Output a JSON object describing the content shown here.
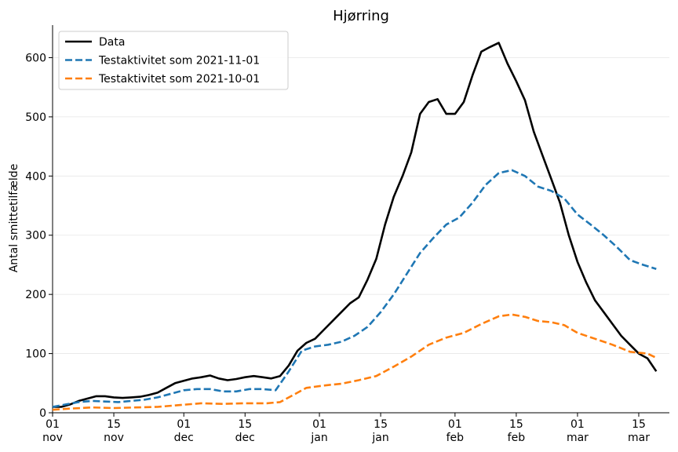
{
  "chart_data": {
    "type": "line",
    "title": "Hjørring",
    "xlabel": "",
    "ylabel": "Antal smittetilfælde",
    "ylim": [
      0,
      655
    ],
    "xlim": [
      "2021-11-01",
      "2022-03-22"
    ],
    "grid": "horizontal",
    "legend_position": "top-left",
    "y_ticks": [
      0,
      100,
      200,
      300,
      400,
      500,
      600
    ],
    "x_ticks": [
      {
        "date": "2021-11-01",
        "day": "01",
        "month": "nov"
      },
      {
        "date": "2021-11-15",
        "day": "15",
        "month": "nov"
      },
      {
        "date": "2021-12-01",
        "day": "01",
        "month": "dec"
      },
      {
        "date": "2021-12-15",
        "day": "15",
        "month": "dec"
      },
      {
        "date": "2022-01-01",
        "day": "01",
        "month": "jan"
      },
      {
        "date": "2022-01-15",
        "day": "15",
        "month": "jan"
      },
      {
        "date": "2022-02-01",
        "day": "01",
        "month": "feb"
      },
      {
        "date": "2022-02-15",
        "day": "15",
        "month": "feb"
      },
      {
        "date": "2022-03-01",
        "day": "01",
        "month": "mar"
      },
      {
        "date": "2022-03-15",
        "day": "15",
        "month": "mar"
      }
    ],
    "series": [
      {
        "name": "Data",
        "color": "#000000",
        "style": "solid",
        "points": [
          [
            "2021-11-01",
            10
          ],
          [
            "2021-11-03",
            10
          ],
          [
            "2021-11-05",
            14
          ],
          [
            "2021-11-07",
            20
          ],
          [
            "2021-11-09",
            24
          ],
          [
            "2021-11-11",
            28
          ],
          [
            "2021-11-13",
            28
          ],
          [
            "2021-11-15",
            26
          ],
          [
            "2021-11-17",
            25
          ],
          [
            "2021-11-19",
            26
          ],
          [
            "2021-11-21",
            27
          ],
          [
            "2021-11-23",
            30
          ],
          [
            "2021-11-25",
            34
          ],
          [
            "2021-11-27",
            42
          ],
          [
            "2021-11-29",
            50
          ],
          [
            "2021-12-01",
            54
          ],
          [
            "2021-12-03",
            58
          ],
          [
            "2021-12-05",
            60
          ],
          [
            "2021-12-07",
            63
          ],
          [
            "2021-12-09",
            58
          ],
          [
            "2021-12-11",
            55
          ],
          [
            "2021-12-13",
            57
          ],
          [
            "2021-12-15",
            60
          ],
          [
            "2021-12-17",
            62
          ],
          [
            "2021-12-19",
            60
          ],
          [
            "2021-12-21",
            58
          ],
          [
            "2021-12-23",
            62
          ],
          [
            "2021-12-25",
            80
          ],
          [
            "2021-12-27",
            105
          ],
          [
            "2021-12-29",
            118
          ],
          [
            "2021-12-31",
            125
          ],
          [
            "2022-01-02",
            140
          ],
          [
            "2022-01-04",
            155
          ],
          [
            "2022-01-06",
            170
          ],
          [
            "2022-01-08",
            185
          ],
          [
            "2022-01-10",
            195
          ],
          [
            "2022-01-12",
            225
          ],
          [
            "2022-01-14",
            260
          ],
          [
            "2022-01-16",
            318
          ],
          [
            "2022-01-18",
            365
          ],
          [
            "2022-01-20",
            400
          ],
          [
            "2022-01-22",
            440
          ],
          [
            "2022-01-24",
            505
          ],
          [
            "2022-01-26",
            525
          ],
          [
            "2022-01-28",
            530
          ],
          [
            "2022-01-30",
            505
          ],
          [
            "2022-02-01",
            505
          ],
          [
            "2022-02-03",
            525
          ],
          [
            "2022-02-05",
            570
          ],
          [
            "2022-02-07",
            610
          ],
          [
            "2022-02-09",
            618
          ],
          [
            "2022-02-11",
            625
          ],
          [
            "2022-02-13",
            590
          ],
          [
            "2022-02-15",
            560
          ],
          [
            "2022-02-17",
            528
          ],
          [
            "2022-02-19",
            475
          ],
          [
            "2022-02-21",
            435
          ],
          [
            "2022-02-23",
            395
          ],
          [
            "2022-02-25",
            355
          ],
          [
            "2022-02-27",
            300
          ],
          [
            "2022-03-01",
            255
          ],
          [
            "2022-03-03",
            220
          ],
          [
            "2022-03-05",
            190
          ],
          [
            "2022-03-07",
            170
          ],
          [
            "2022-03-09",
            150
          ],
          [
            "2022-03-11",
            130
          ],
          [
            "2022-03-13",
            115
          ],
          [
            "2022-03-15",
            100
          ],
          [
            "2022-03-17",
            92
          ],
          [
            "2022-03-19",
            70
          ]
        ]
      },
      {
        "name": "Testaktivitet som 2021-11-01",
        "color": "#1f77b4",
        "style": "dashed",
        "points": [
          [
            "2021-11-01",
            10
          ],
          [
            "2021-11-04",
            14
          ],
          [
            "2021-11-07",
            18
          ],
          [
            "2021-11-10",
            20
          ],
          [
            "2021-11-13",
            19
          ],
          [
            "2021-11-16",
            18
          ],
          [
            "2021-11-19",
            20
          ],
          [
            "2021-11-22",
            22
          ],
          [
            "2021-11-25",
            26
          ],
          [
            "2021-11-28",
            32
          ],
          [
            "2021-12-01",
            38
          ],
          [
            "2021-12-04",
            40
          ],
          [
            "2021-12-07",
            40
          ],
          [
            "2021-12-10",
            36
          ],
          [
            "2021-12-13",
            36
          ],
          [
            "2021-12-16",
            40
          ],
          [
            "2021-12-19",
            40
          ],
          [
            "2021-12-22",
            38
          ],
          [
            "2021-12-25",
            70
          ],
          [
            "2021-12-28",
            105
          ],
          [
            "2021-12-31",
            112
          ],
          [
            "2022-01-03",
            115
          ],
          [
            "2022-01-06",
            120
          ],
          [
            "2022-01-09",
            130
          ],
          [
            "2022-01-12",
            145
          ],
          [
            "2022-01-15",
            170
          ],
          [
            "2022-01-18",
            200
          ],
          [
            "2022-01-21",
            235
          ],
          [
            "2022-01-24",
            270
          ],
          [
            "2022-01-27",
            295
          ],
          [
            "2022-01-30",
            318
          ],
          [
            "2022-02-02",
            330
          ],
          [
            "2022-02-05",
            355
          ],
          [
            "2022-02-08",
            385
          ],
          [
            "2022-02-11",
            405
          ],
          [
            "2022-02-14",
            410
          ],
          [
            "2022-02-17",
            400
          ],
          [
            "2022-02-20",
            382
          ],
          [
            "2022-02-23",
            375
          ],
          [
            "2022-02-26",
            362
          ],
          [
            "2022-03-01",
            335
          ],
          [
            "2022-03-04",
            318
          ],
          [
            "2022-03-07",
            300
          ],
          [
            "2022-03-10",
            280
          ],
          [
            "2022-03-13",
            258
          ],
          [
            "2022-03-16",
            250
          ],
          [
            "2022-03-19",
            243
          ]
        ]
      },
      {
        "name": "Testaktivitet som 2021-10-01",
        "color": "#ff7f0e",
        "style": "dashed",
        "points": [
          [
            "2021-11-01",
            5
          ],
          [
            "2021-11-05",
            7
          ],
          [
            "2021-11-10",
            9
          ],
          [
            "2021-11-15",
            8
          ],
          [
            "2021-11-20",
            9
          ],
          [
            "2021-11-25",
            10
          ],
          [
            "2021-11-30",
            13
          ],
          [
            "2021-12-05",
            16
          ],
          [
            "2021-12-10",
            15
          ],
          [
            "2021-12-15",
            16
          ],
          [
            "2021-12-20",
            16
          ],
          [
            "2021-12-23",
            18
          ],
          [
            "2021-12-26",
            30
          ],
          [
            "2021-12-29",
            42
          ],
          [
            "2022-01-02",
            46
          ],
          [
            "2022-01-06",
            49
          ],
          [
            "2022-01-10",
            55
          ],
          [
            "2022-01-14",
            62
          ],
          [
            "2022-01-18",
            78
          ],
          [
            "2022-01-22",
            95
          ],
          [
            "2022-01-26",
            115
          ],
          [
            "2022-01-30",
            127
          ],
          [
            "2022-02-03",
            135
          ],
          [
            "2022-02-07",
            150
          ],
          [
            "2022-02-11",
            163
          ],
          [
            "2022-02-14",
            166
          ],
          [
            "2022-02-17",
            162
          ],
          [
            "2022-02-20",
            155
          ],
          [
            "2022-02-23",
            153
          ],
          [
            "2022-02-26",
            148
          ],
          [
            "2022-03-01",
            135
          ],
          [
            "2022-03-05",
            125
          ],
          [
            "2022-03-09",
            115
          ],
          [
            "2022-03-13",
            103
          ],
          [
            "2022-03-17",
            100
          ],
          [
            "2022-03-19",
            93
          ]
        ]
      }
    ]
  }
}
